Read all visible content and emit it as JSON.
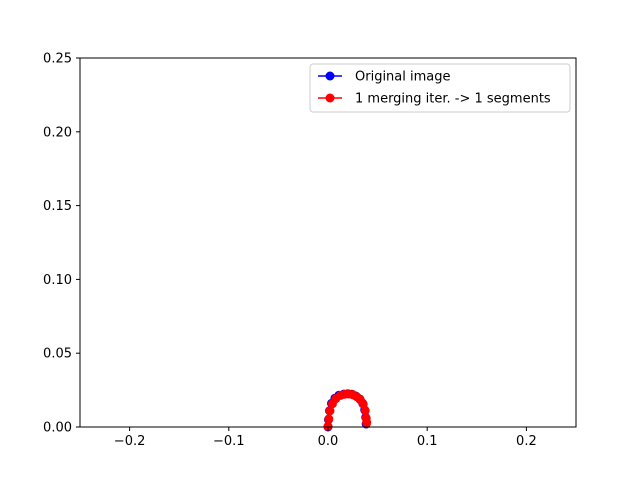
{
  "chart_data": {
    "type": "line",
    "title": "",
    "xlabel": "",
    "ylabel": "",
    "xlim": [
      -0.25,
      0.25
    ],
    "ylim": [
      0,
      0.25
    ],
    "xticks": [
      -0.2,
      -0.1,
      0.0,
      0.1,
      0.2
    ],
    "xtick_labels": [
      "−0.2",
      "−0.1",
      "0.0",
      "0.1",
      "0.2"
    ],
    "yticks": [
      0.0,
      0.05,
      0.1,
      0.15,
      0.2,
      0.25
    ],
    "ytick_labels": [
      "0.00",
      "0.05",
      "0.10",
      "0.15",
      "0.20",
      "0.25"
    ],
    "grid": false,
    "legend_position": "top-right",
    "series": [
      {
        "name": "Original image",
        "color": "#0000ff",
        "marker": "circle",
        "x": [
          0.0,
          0.0005,
          0.0015,
          0.0035,
          0.007,
          0.011,
          0.016,
          0.02,
          0.024,
          0.028,
          0.032,
          0.035,
          0.037,
          0.038,
          0.0385
        ],
        "y": [
          0.0,
          0.005,
          0.011,
          0.016,
          0.0195,
          0.0215,
          0.0223,
          0.0225,
          0.0222,
          0.021,
          0.019,
          0.016,
          0.0115,
          0.0065,
          0.002
        ]
      },
      {
        "name": "1 merging iter. -> 1 segments",
        "color": "#ff0000",
        "marker": "circle",
        "x": [
          0.0,
          0.0008,
          0.002,
          0.0045,
          0.008,
          0.0125,
          0.017,
          0.021,
          0.025,
          0.029,
          0.0325,
          0.0355,
          0.0375,
          0.0385,
          0.039
        ],
        "y": [
          0.0005,
          0.0055,
          0.011,
          0.0158,
          0.0193,
          0.0214,
          0.0222,
          0.0224,
          0.0219,
          0.0205,
          0.0185,
          0.0155,
          0.011,
          0.006,
          0.003
        ]
      }
    ]
  }
}
